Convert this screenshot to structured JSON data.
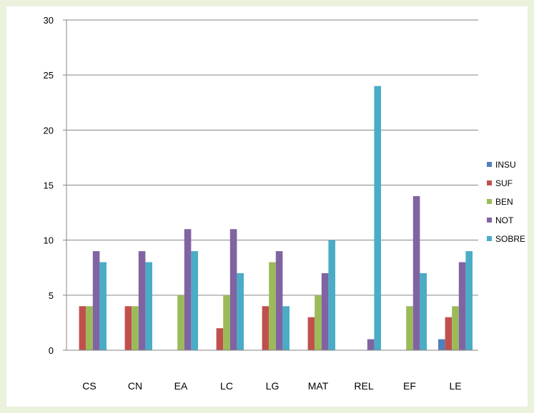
{
  "chart_data": {
    "type": "bar",
    "title": "",
    "xlabel": "",
    "ylabel": "",
    "ylim": [
      0,
      30
    ],
    "yticks": [
      0,
      5,
      10,
      15,
      20,
      25,
      30
    ],
    "grid": true,
    "legend_position": "right",
    "categories": [
      "CS",
      "CN",
      "EA",
      "LC",
      "LG",
      "MAT",
      "REL",
      "EF",
      "LE"
    ],
    "series": [
      {
        "name": "INSU",
        "color": "#4f81bd",
        "values": [
          0,
          0,
          0,
          0,
          0,
          0,
          0,
          0,
          1
        ]
      },
      {
        "name": "SUF",
        "color": "#c0504d",
        "values": [
          4,
          4,
          0,
          2,
          4,
          3,
          0,
          0,
          3
        ]
      },
      {
        "name": "BEN",
        "color": "#9bbb59",
        "values": [
          4,
          4,
          5,
          5,
          8,
          5,
          0,
          4,
          4
        ]
      },
      {
        "name": "NOT",
        "color": "#8064a2",
        "values": [
          9,
          9,
          11,
          11,
          9,
          7,
          1,
          14,
          8
        ]
      },
      {
        "name": "SOBRE",
        "color": "#4bacc6",
        "values": [
          8,
          8,
          9,
          7,
          4,
          10,
          24,
          7,
          9
        ]
      }
    ]
  }
}
